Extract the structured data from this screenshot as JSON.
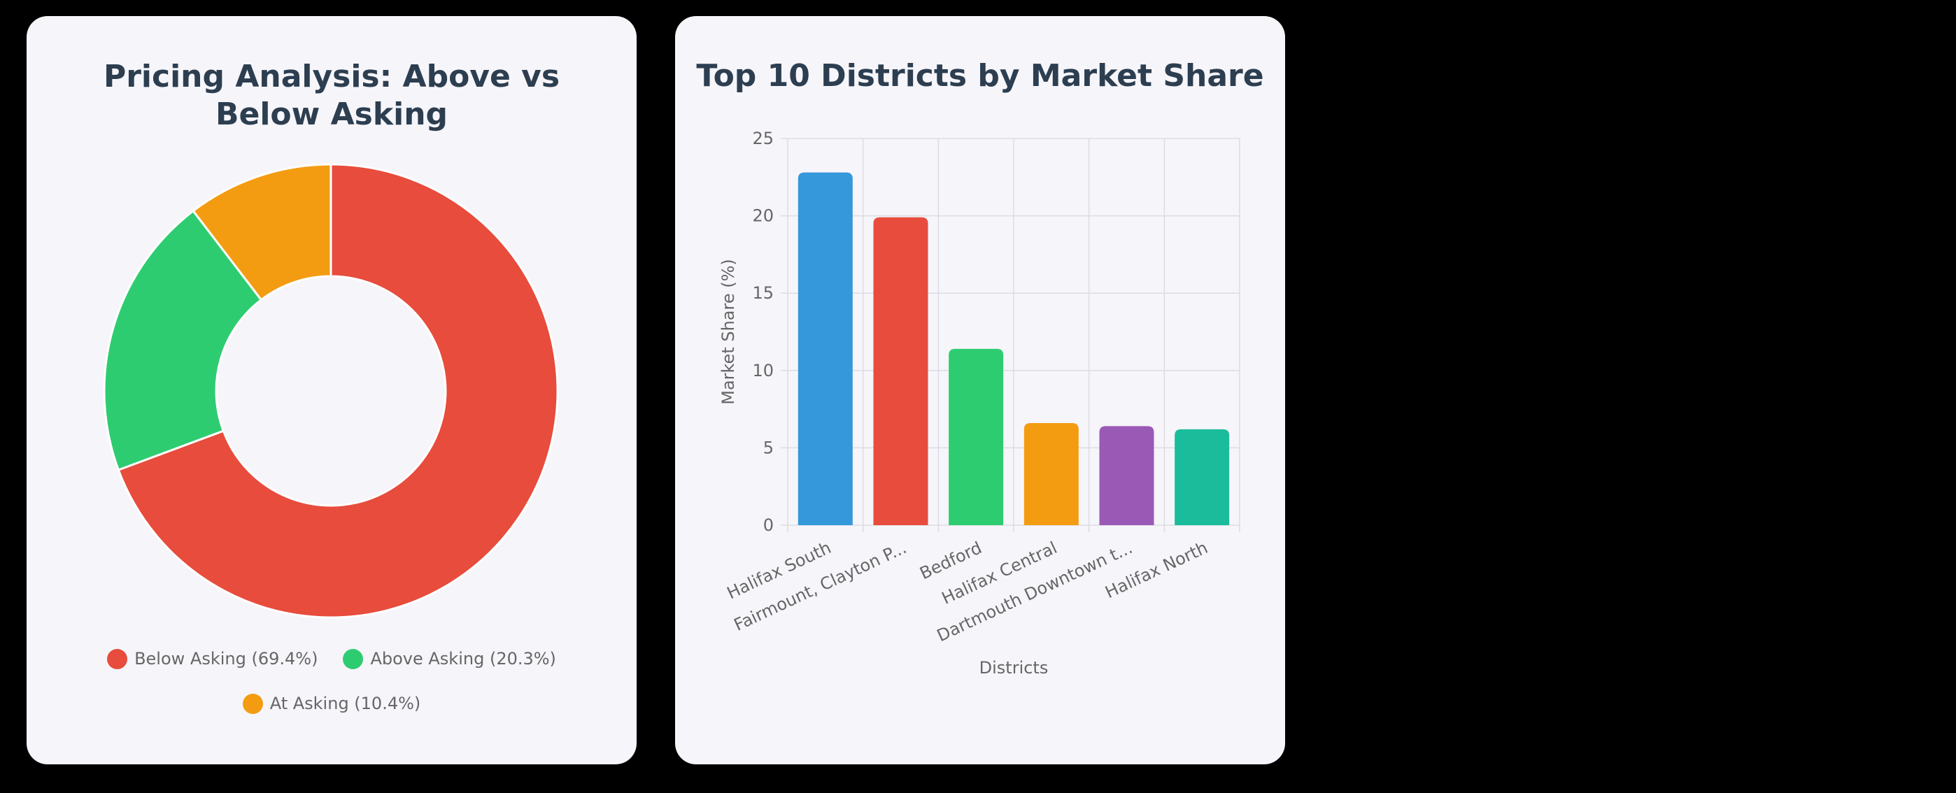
{
  "chart_data": [
    {
      "type": "pie",
      "variant": "doughnut",
      "title": "Pricing Analysis: Above vs Below Asking",
      "legend_position": "bottom",
      "slices": [
        {
          "label": "Below Asking (69.4%)",
          "value": 69.4,
          "color": "#e74c3c"
        },
        {
          "label": "Above Asking (20.3%)",
          "value": 20.3,
          "color": "#2ecc71"
        },
        {
          "label": "At Asking (10.4%)",
          "value": 10.4,
          "color": "#f39c12"
        }
      ]
    },
    {
      "type": "bar",
      "title": "Top 10 Districts by Market Share",
      "xlabel": "Districts",
      "ylabel": "Market Share (%)",
      "ylim": [
        0,
        25
      ],
      "yticks": [
        "0",
        "5",
        "10",
        "15",
        "20",
        "25"
      ],
      "grid": true,
      "categories": [
        "Halifax South",
        "Fairmount, Clayton P...",
        "Bedford",
        "Halifax Central",
        "Dartmouth Downtown t...",
        "Halifax North"
      ],
      "values": [
        22.8,
        19.9,
        11.4,
        6.6,
        6.4,
        6.2
      ],
      "colors": [
        "#3498db",
        "#e74c3c",
        "#2ecc71",
        "#f39c12",
        "#9b59b6",
        "#1abc9c"
      ]
    }
  ]
}
